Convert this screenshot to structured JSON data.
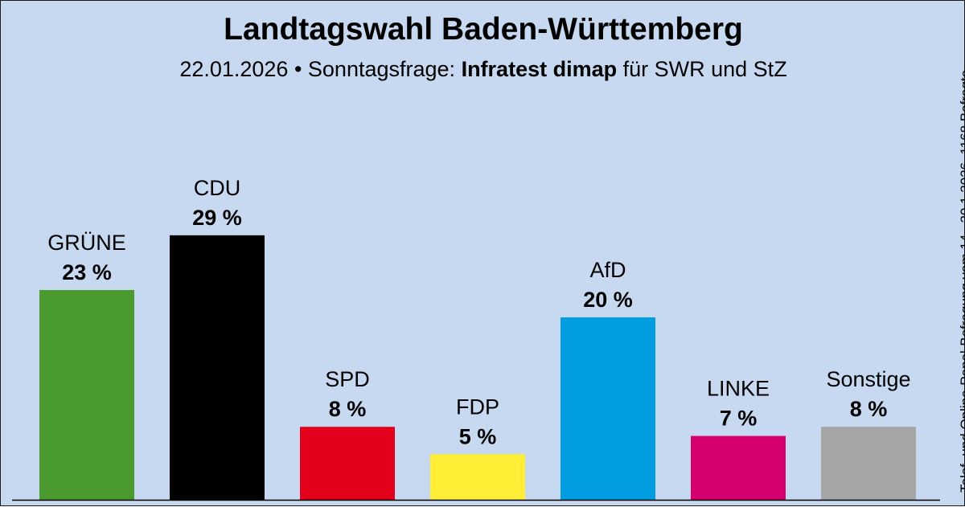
{
  "header": {
    "title": "Landtagswahl Baden-Württemberg",
    "subtitle_date": "22.01.2026 • Sonntagsfrage:",
    "subtitle_institute": "Infratest dimap",
    "subtitle_client": "für SWR und StZ"
  },
  "source_note": "Telef. und Online-Panel-Befragung vom 14.–20.1.2026, 1168 Befragte",
  "chart_data": {
    "type": "bar",
    "categories": [
      "GRÜNE",
      "CDU",
      "SPD",
      "FDP",
      "AfD",
      "LINKE",
      "Sonstige"
    ],
    "values": [
      23,
      29,
      8,
      5,
      20,
      7,
      8
    ],
    "value_labels": [
      "23 %",
      "29 %",
      "8 %",
      "5 %",
      "20 %",
      "7 %",
      "8 %"
    ],
    "colors": [
      "#4a9a2f",
      "#000000",
      "#e2001a",
      "#ffed36",
      "#009ee0",
      "#d5006d",
      "#a6a6a6"
    ],
    "unit": "%",
    "ylim": [
      0,
      30
    ],
    "grid": false,
    "legend": "none"
  }
}
